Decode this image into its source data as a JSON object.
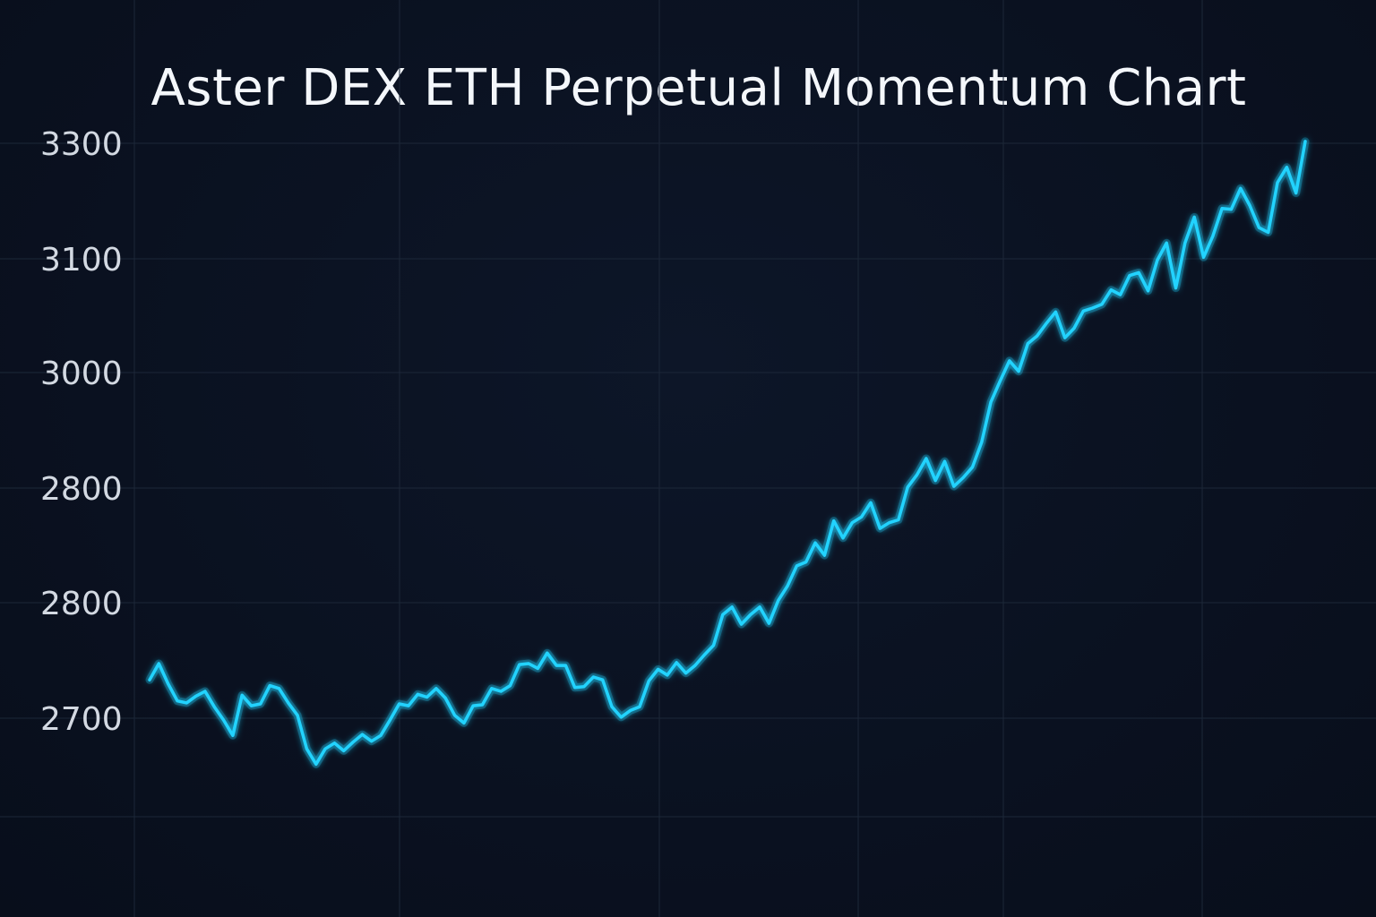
{
  "chart_data": {
    "type": "line",
    "title": "Aster DEX ETH Perpetual Momentum Chart",
    "xlabel": "",
    "ylabel": "",
    "y_tick_labels": [
      "3300",
      "3100",
      "3000",
      "2800",
      "2800",
      "2700"
    ],
    "grid": true,
    "colors": {
      "background": "#0a1120",
      "grid": "#1c2738",
      "line": "#22d3ff",
      "text": "#f4f7fb",
      "tick_text": "#d3d9e2"
    },
    "series": [
      {
        "values": [
          2740,
          2757,
          2736,
          2718,
          2716,
          2723,
          2728,
          2712,
          2698,
          2682,
          2724,
          2713,
          2715,
          2734,
          2731,
          2716,
          2703,
          2668,
          2652,
          2668,
          2674,
          2666,
          2675,
          2683,
          2676,
          2682,
          2698,
          2715,
          2713,
          2725,
          2722,
          2731,
          2721,
          2703,
          2695,
          2713,
          2714,
          2731,
          2728,
          2734,
          2756,
          2757,
          2752,
          2768,
          2755,
          2755,
          2732,
          2733,
          2743,
          2740,
          2712,
          2701,
          2708,
          2712,
          2739,
          2751,
          2745,
          2758,
          2747,
          2755,
          2766,
          2776,
          2808,
          2816,
          2798,
          2808,
          2816,
          2799,
          2823,
          2838,
          2859,
          2863,
          2883,
          2870,
          2906,
          2888,
          2904,
          2910,
          2925,
          2898,
          2904,
          2907,
          2941,
          2954,
          2971,
          2948,
          2968,
          2942,
          2951,
          2962,
          2988,
          3030,
          3052,
          3073,
          3062,
          3091,
          3099,
          3112,
          3124,
          3097,
          3107,
          3125,
          3128,
          3132,
          3147,
          3142,
          3162,
          3165,
          3146,
          3178,
          3196,
          3149,
          3196,
          3223,
          3181,
          3203,
          3232,
          3231,
          3253,
          3235,
          3212,
          3207,
          3259,
          3275,
          3248,
          3302
        ]
      }
    ]
  }
}
